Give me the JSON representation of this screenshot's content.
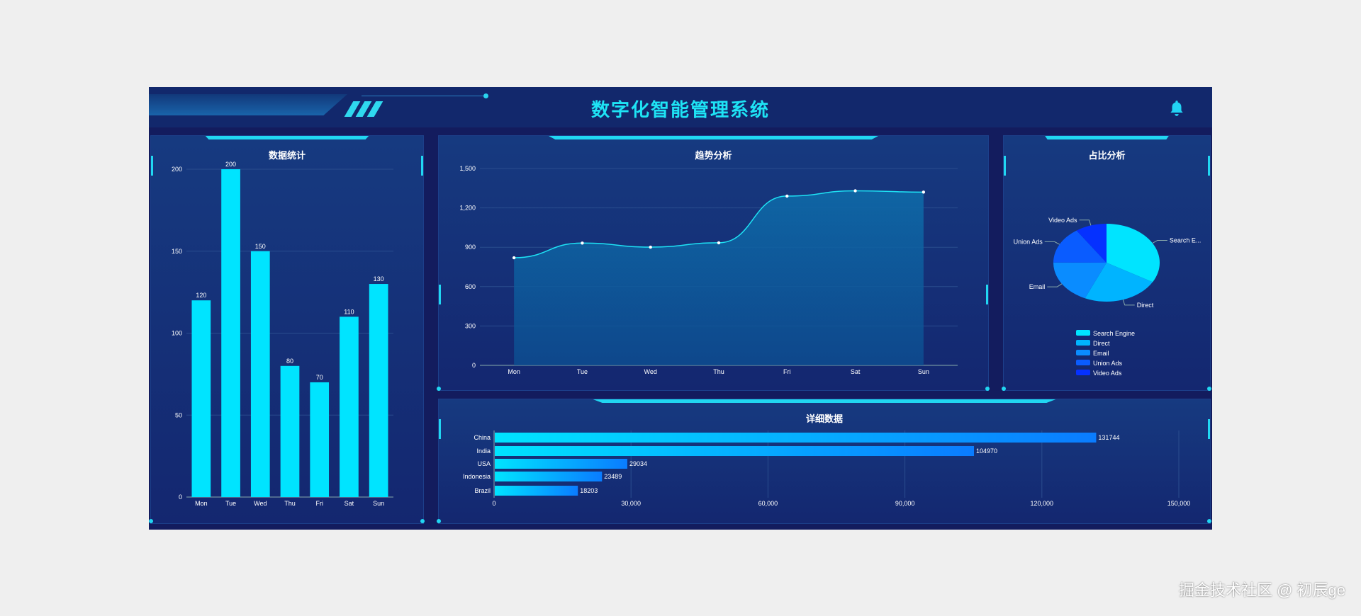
{
  "header": {
    "title": "数字化智能管理系统",
    "notification_icon": "bell-icon"
  },
  "panels": {
    "bar": "数据统计",
    "trend": "趋势分析",
    "pie": "占比分析",
    "detail": "详细数据"
  },
  "colors": {
    "accent": "#1ee3f5",
    "bar": "#00e4ff",
    "background": "#131c5e"
  },
  "watermark": "掘金技术社区 @ 初辰ge",
  "chart_data": [
    {
      "type": "bar",
      "title": "数据统计",
      "categories": [
        "Mon",
        "Tue",
        "Wed",
        "Thu",
        "Fri",
        "Sat",
        "Sun"
      ],
      "values": [
        120,
        200,
        150,
        80,
        70,
        110,
        130
      ],
      "ylim": [
        0,
        200
      ],
      "yticks": [
        "0",
        "50",
        "100",
        "150",
        "200"
      ],
      "grid": true,
      "data_labels": true
    },
    {
      "type": "area",
      "title": "趋势分析",
      "categories": [
        "Mon",
        "Tue",
        "Wed",
        "Thu",
        "Fri",
        "Sat",
        "Sun"
      ],
      "values": [
        820,
        932,
        901,
        934,
        1290,
        1330,
        1320
      ],
      "ylim": [
        0,
        1500
      ],
      "yticks": [
        "0",
        "300",
        "600",
        "900",
        "1,200",
        "1,500"
      ],
      "grid": true,
      "smooth": true
    },
    {
      "type": "pie",
      "title": "占比分析",
      "labels": [
        "Search Engine",
        "Direct",
        "Email",
        "Union Ads",
        "Video Ads"
      ],
      "slice_labels": [
        "Search E...",
        "Direct",
        "Email",
        "Union Ads",
        "Video Ads"
      ],
      "values": [
        1048,
        735,
        580,
        484,
        300
      ],
      "colors": [
        "#00e4ff",
        "#00b4ff",
        "#0a8cff",
        "#0a5cff",
        "#0531ff"
      ],
      "legend": "bottom"
    },
    {
      "type": "bar",
      "orientation": "horizontal",
      "title": "详细数据",
      "categories": [
        "China",
        "India",
        "USA",
        "Indonesia",
        "Brazil"
      ],
      "values": [
        131744,
        104970,
        29034,
        23489,
        18203
      ],
      "xlim": [
        0,
        150000
      ],
      "xticks": [
        "0",
        "30,000",
        "60,000",
        "90,000",
        "120,000",
        "150,000"
      ],
      "grid": true,
      "data_labels": true
    }
  ]
}
